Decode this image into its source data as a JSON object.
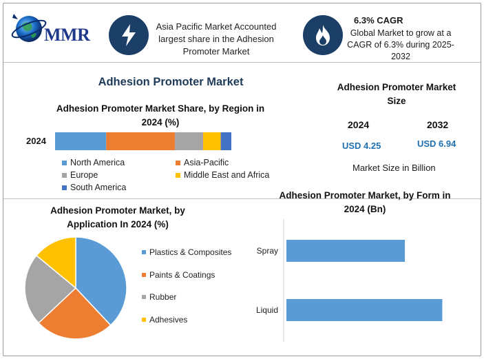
{
  "header": {
    "logo_text": "MMR",
    "region_note": "Asia Pacific Market Accounted largest share in the Adhesion Promoter Market",
    "cagr_title": "6.3% CAGR",
    "cagr_note": "Global Market to grow at a CAGR of 6.3% during 2025-2032",
    "icons": [
      "bolt-icon",
      "flame-icon",
      "globe-icon"
    ]
  },
  "main_title": "Adhesion Promoter Market",
  "colors": {
    "north_america": "#5b9bd5",
    "asia_pacific": "#ed7d31",
    "europe": "#a5a5a5",
    "mea": "#ffc000",
    "south_america": "#4472c4",
    "icon_bg": "#1b3f66",
    "value_blue": "#1e6fb0"
  },
  "market_size": {
    "title": "Adhesion Promoter Market Size",
    "years": [
      "2024",
      "2032"
    ],
    "values": [
      "USD 4.25",
      "USD 6.94"
    ],
    "unit_note": "Market Size in Billion"
  },
  "chart_data": [
    {
      "type": "bar",
      "orientation": "horizontal-stacked",
      "title": "Adhesion Promoter Market Share, by Region in 2024 (%)",
      "categories": [
        "2024"
      ],
      "series": [
        {
          "name": "North America",
          "values": [
            29
          ]
        },
        {
          "name": "Asia-Pacific",
          "values": [
            39
          ]
        },
        {
          "name": "Europe",
          "values": [
            16
          ]
        },
        {
          "name": "Middle East and Africa",
          "values": [
            10
          ]
        },
        {
          "name": "South America",
          "values": [
            6
          ]
        }
      ],
      "legend_position": "bottom"
    },
    {
      "type": "pie",
      "title": "Adhesion Promoter Market, by Application In 2024 (%)",
      "labels": [
        "Plastics & Composites",
        "Paints & Coatings",
        "Rubber",
        "Adhesives"
      ],
      "values": [
        38,
        25,
        23,
        14
      ],
      "colors": [
        "#5b9bd5",
        "#ed7d31",
        "#a5a5a5",
        "#ffc000"
      ],
      "legend_position": "right"
    },
    {
      "type": "bar",
      "orientation": "horizontal",
      "title": "Adhesion Promoter Market, by Form in 2024 (Bn)",
      "categories": [
        "Spray",
        "Liquid"
      ],
      "values": [
        1.9,
        2.5
      ],
      "xlim": [
        0,
        2.65
      ],
      "color": "#5b9bd5",
      "grid": false
    }
  ]
}
